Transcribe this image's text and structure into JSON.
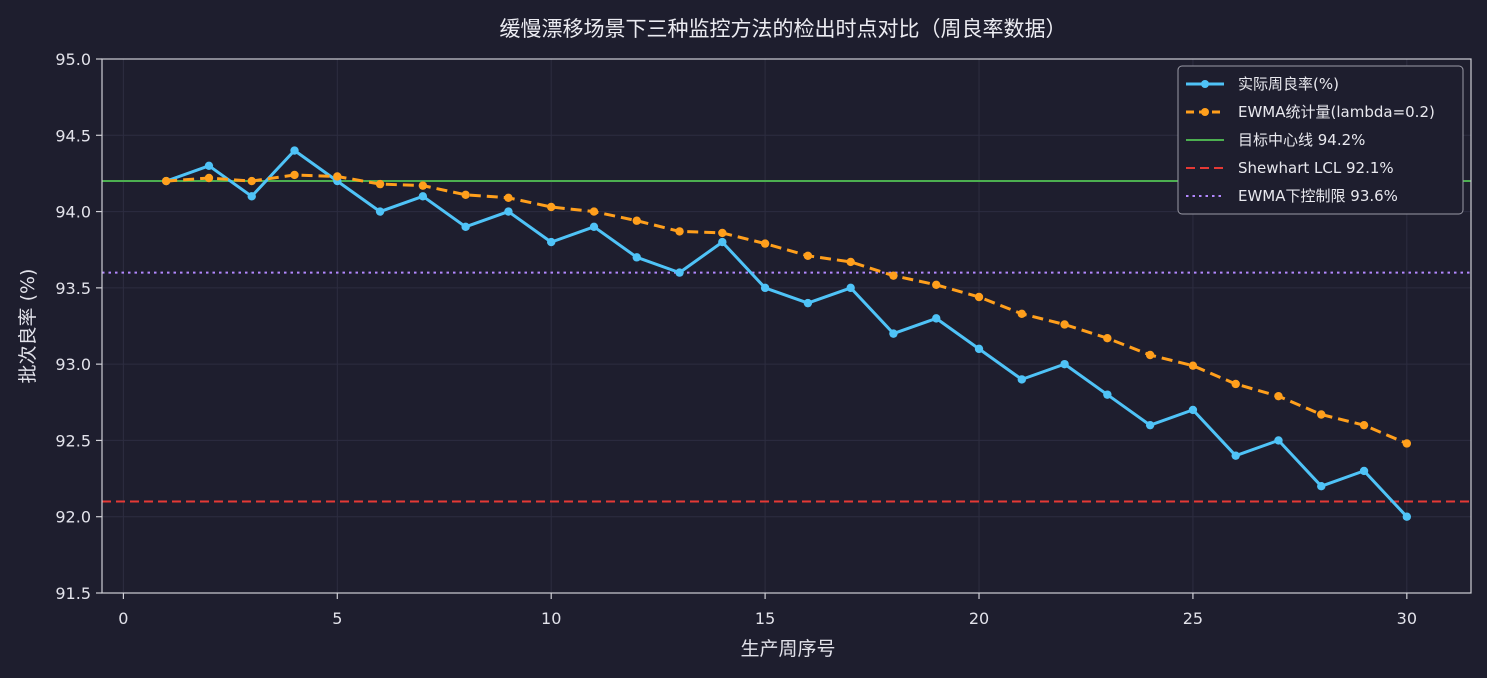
{
  "chart_data": {
    "type": "line",
    "title": "缓慢漂移场景下三种监控方法的检出时点对比（周良率数据）",
    "xlabel": "生产周序号",
    "ylabel": "批次良率 (%)",
    "xlim": [
      -0.5,
      31.5
    ],
    "ylim": [
      91.5,
      95.0
    ],
    "x_ticks": [
      0,
      5,
      10,
      15,
      20,
      25,
      30
    ],
    "x_tick_labels": [
      "0",
      "5",
      "10",
      "15",
      "20",
      "25",
      "30"
    ],
    "y_ticks": [
      91.5,
      92.0,
      92.5,
      93.0,
      93.5,
      94.0,
      94.5,
      95.0
    ],
    "y_tick_labels": [
      "91.5",
      "92.0",
      "92.5",
      "93.0",
      "93.5",
      "94.0",
      "94.5",
      "95.0"
    ],
    "grid": true,
    "legend_position": "top-right",
    "background": "#1e1e2e",
    "x": [
      1,
      2,
      3,
      4,
      5,
      6,
      7,
      8,
      9,
      10,
      11,
      12,
      13,
      14,
      15,
      16,
      17,
      18,
      19,
      20,
      21,
      22,
      23,
      24,
      25,
      26,
      27,
      28,
      29,
      30
    ],
    "series": [
      {
        "name": "实际周良率(%)",
        "color": "#4fc3f7",
        "style": "solid-markers",
        "values": [
          94.2,
          94.3,
          94.1,
          94.4,
          94.2,
          94.0,
          94.1,
          93.9,
          94.0,
          93.8,
          93.9,
          93.7,
          93.6,
          93.8,
          93.5,
          93.4,
          93.5,
          93.2,
          93.3,
          93.1,
          92.9,
          93.0,
          92.8,
          92.6,
          92.7,
          92.4,
          92.5,
          92.2,
          92.3,
          92.0
        ]
      },
      {
        "name": "EWMA统计量(lambda=0.2)",
        "color": "#ff9f1c",
        "style": "dashed-markers",
        "values": [
          94.2,
          94.22,
          94.2,
          94.24,
          94.23,
          94.18,
          94.17,
          94.11,
          94.09,
          94.03,
          94.0,
          93.94,
          93.87,
          93.86,
          93.79,
          93.71,
          93.67,
          93.58,
          93.52,
          93.44,
          93.33,
          93.26,
          93.17,
          93.06,
          92.99,
          92.87,
          92.79,
          92.67,
          92.6,
          92.48
        ]
      }
    ],
    "reference_lines": [
      {
        "name": "目标中心线 94.2%",
        "value": 94.2,
        "color": "#4caf50",
        "style": "solid"
      },
      {
        "name": "Shewhart LCL 92.1%",
        "value": 92.1,
        "color": "#e53935",
        "style": "dashed"
      },
      {
        "name": "EWMA下控制限 93.6%",
        "value": 93.6,
        "color": "#b388ff",
        "style": "dotted"
      }
    ]
  }
}
